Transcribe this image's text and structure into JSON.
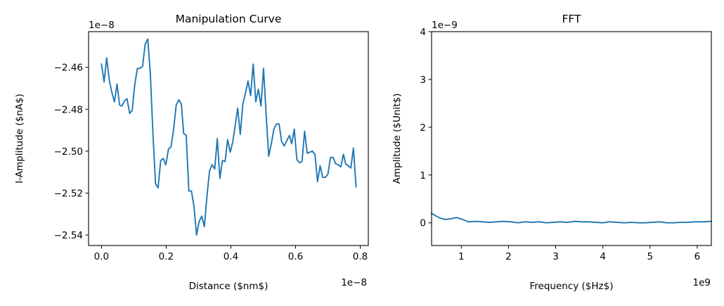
{
  "chart_data": [
    {
      "type": "line",
      "title": "Manipulation Curve",
      "xlabel": "Distance ($nm$)",
      "ylabel": "I-Amplitude ($nA$)",
      "x_offset_label": "1e−8",
      "y_offset_label": "1e−8",
      "x_scale": 1e-08,
      "y_scale": 1e-08,
      "xlim": [
        -0.04,
        0.825
      ],
      "ylim": [
        -2.545,
        -2.443
      ],
      "xticks": [
        0.0,
        0.2,
        0.4,
        0.6,
        0.8
      ],
      "xtick_labels": [
        "0.0",
        "0.2",
        "0.4",
        "0.6",
        "0.8"
      ],
      "yticks": [
        -2.54,
        -2.52,
        -2.5,
        -2.48,
        -2.46
      ],
      "ytick_labels": [
        "−2.54",
        "−2.52",
        "−2.50",
        "−2.48",
        "−2.46"
      ],
      "grid": false,
      "series": [
        {
          "color": "#1f77b4",
          "x": [
            0.0,
            0.008,
            0.016,
            0.024,
            0.032,
            0.04,
            0.048,
            0.056,
            0.063,
            0.071,
            0.079,
            0.087,
            0.095,
            0.103,
            0.111,
            0.119,
            0.127,
            0.135,
            0.143,
            0.151,
            0.159,
            0.167,
            0.175,
            0.183,
            0.191,
            0.199,
            0.207,
            0.215,
            0.223,
            0.231,
            0.239,
            0.247,
            0.254,
            0.262,
            0.27,
            0.278,
            0.286,
            0.294,
            0.302,
            0.31,
            0.318,
            0.326,
            0.334,
            0.342,
            0.35,
            0.358,
            0.366,
            0.374,
            0.382,
            0.39,
            0.398,
            0.406,
            0.414,
            0.421,
            0.429,
            0.437,
            0.445,
            0.453,
            0.461,
            0.469,
            0.477,
            0.485,
            0.493,
            0.501,
            0.509,
            0.517,
            0.525,
            0.533,
            0.541,
            0.549,
            0.557,
            0.565,
            0.573,
            0.581,
            0.588,
            0.596,
            0.604,
            0.612,
            0.62,
            0.628,
            0.636,
            0.644,
            0.652,
            0.66,
            0.668,
            0.676,
            0.684,
            0.692,
            0.7,
            0.708,
            0.716,
            0.724,
            0.732,
            0.74,
            0.748,
            0.755,
            0.763,
            0.771,
            0.779,
            0.787
          ],
          "y": [
            -2.4585,
            -2.467,
            -2.4555,
            -2.466,
            -2.472,
            -2.4765,
            -2.468,
            -2.478,
            -2.4785,
            -2.476,
            -2.475,
            -2.482,
            -2.4805,
            -2.468,
            -2.4605,
            -2.4605,
            -2.4595,
            -2.449,
            -2.4465,
            -2.463,
            -2.4915,
            -2.5155,
            -2.5175,
            -2.5045,
            -2.5035,
            -2.5065,
            -2.499,
            -2.498,
            -2.4895,
            -2.478,
            -2.4755,
            -2.4775,
            -2.4915,
            -2.4925,
            -2.519,
            -2.519,
            -2.5265,
            -2.54,
            -2.5335,
            -2.531,
            -2.536,
            -2.5215,
            -2.5095,
            -2.5065,
            -2.5085,
            -2.494,
            -2.513,
            -2.5045,
            -2.505,
            -2.4945,
            -2.5005,
            -2.4955,
            -2.487,
            -2.4795,
            -2.492,
            -2.4775,
            -2.4725,
            -2.4665,
            -2.4735,
            -2.4585,
            -2.4765,
            -2.4705,
            -2.4785,
            -2.4605,
            -2.4825,
            -2.5025,
            -2.4965,
            -2.4895,
            -2.487,
            -2.487,
            -2.4955,
            -2.4975,
            -2.495,
            -2.4925,
            -2.4965,
            -2.4895,
            -2.504,
            -2.5055,
            -2.505,
            -2.4905,
            -2.501,
            -2.5005,
            -2.5,
            -2.5015,
            -2.5145,
            -2.507,
            -2.5125,
            -2.5125,
            -2.511,
            -2.503,
            -2.503,
            -2.506,
            -2.5065,
            -2.5075,
            -2.5015,
            -2.506,
            -2.507,
            -2.508,
            -2.4985,
            -2.517
          ]
        }
      ]
    },
    {
      "type": "line",
      "title": "FFT",
      "xlabel": "Frequency ($Hz$)",
      "ylabel": "Amplitude ($Unit$)",
      "x_offset_label": "1e9",
      "y_offset_label": "1e−9",
      "x_scale": 1000000000.0,
      "y_scale": 1e-09,
      "xlim": [
        0.37,
        6.3
      ],
      "ylim": [
        -0.475,
        4.0
      ],
      "xticks": [
        1,
        2,
        3,
        4,
        5,
        6
      ],
      "xtick_labels": [
        "1",
        "2",
        "3",
        "4",
        "5",
        "6"
      ],
      "yticks": [
        0,
        1,
        2,
        3,
        4
      ],
      "ytick_labels": [
        "0",
        "1",
        "2",
        "3",
        "4"
      ],
      "grid": false,
      "series": [
        {
          "color": "#1f77b4",
          "x": [
            0.37,
            0.45,
            0.55,
            0.65,
            0.75,
            0.9,
            1.0,
            1.1,
            1.15,
            1.3,
            1.45,
            1.6,
            1.75,
            1.9,
            2.05,
            2.2,
            2.35,
            2.5,
            2.65,
            2.8,
            2.95,
            3.1,
            3.25,
            3.4,
            3.55,
            3.7,
            3.85,
            4.0,
            4.15,
            4.3,
            4.45,
            4.6,
            4.75,
            4.9,
            5.05,
            5.2,
            5.35,
            5.5,
            5.65,
            5.8,
            5.95,
            6.1,
            6.3
          ],
          "y": [
            0.2,
            0.15,
            0.1,
            0.07,
            0.08,
            0.11,
            0.08,
            0.04,
            0.02,
            0.03,
            0.02,
            0.01,
            0.02,
            0.03,
            0.02,
            0.0,
            0.02,
            0.01,
            0.02,
            0.0,
            0.01,
            0.02,
            0.01,
            0.03,
            0.02,
            0.02,
            0.01,
            0.0,
            0.02,
            0.01,
            0.0,
            0.01,
            0.0,
            0.0,
            0.01,
            0.02,
            0.0,
            0.0,
            0.01,
            0.01,
            0.02,
            0.02,
            0.03
          ]
        }
      ]
    }
  ]
}
